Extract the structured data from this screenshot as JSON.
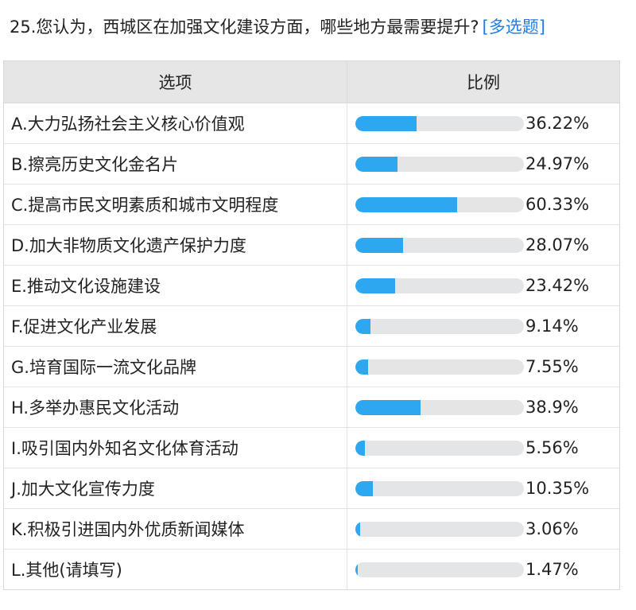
{
  "question": {
    "text": "25.您认为，西城区在加强文化建设方面，哪些地方最需要提升?",
    "tag": "[多选题]",
    "tag_color": "#1f7ee8"
  },
  "table": {
    "header_option": "选项",
    "header_ratio": "比例",
    "bar_color": "#2da7f0",
    "track_color": "#e4e5e7",
    "rows": [
      {
        "option": "A.大力弘扬社会主义核心价值观",
        "ratio_label": "36.22%",
        "value": 36.22
      },
      {
        "option": "B.擦亮历史文化金名片",
        "ratio_label": "24.97%",
        "value": 24.97
      },
      {
        "option": "C.提高市民文明素质和城市文明程度",
        "ratio_label": "60.33%",
        "value": 60.33
      },
      {
        "option": "D.加大非物质文化遗产保护力度",
        "ratio_label": "28.07%",
        "value": 28.07
      },
      {
        "option": "E.推动文化设施建设",
        "ratio_label": "23.42%",
        "value": 23.42
      },
      {
        "option": "F.促进文化产业发展",
        "ratio_label": "9.14%",
        "value": 9.14
      },
      {
        "option": "G.培育国际一流文化品牌",
        "ratio_label": "7.55%",
        "value": 7.55
      },
      {
        "option": "H.多举办惠民文化活动",
        "ratio_label": "38.9%",
        "value": 38.9
      },
      {
        "option": "I.吸引国内外知名文化体育活动",
        "ratio_label": "5.56%",
        "value": 5.56
      },
      {
        "option": "J.加大文化宣传力度",
        "ratio_label": "10.35%",
        "value": 10.35
      },
      {
        "option": "K.积极引进国内外优质新闻媒体",
        "ratio_label": "3.06%",
        "value": 3.06
      },
      {
        "option": "L.其他(请填写)",
        "ratio_label": "1.47%",
        "value": 1.47
      }
    ]
  }
}
